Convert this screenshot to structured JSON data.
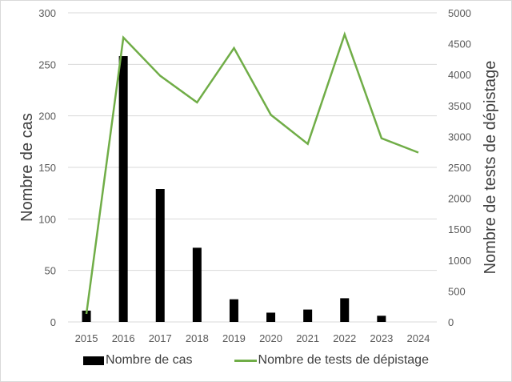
{
  "chart_data": {
    "type": "bar+line",
    "title": "",
    "categories": [
      "2015",
      "2016",
      "2017",
      "2018",
      "2019",
      "2020",
      "2021",
      "2022",
      "2023",
      "2024"
    ],
    "series": [
      {
        "name": "Nombre de cas",
        "type": "bar",
        "axis": "left",
        "color": "#000000",
        "values": [
          11,
          258,
          129,
          72,
          22,
          9,
          12,
          23,
          6,
          0
        ]
      },
      {
        "name": "Nombre de tests de dépistage",
        "type": "line",
        "axis": "right",
        "color": "#70AD47",
        "values": [
          130,
          4600,
          3980,
          3550,
          4430,
          3350,
          2880,
          4650,
          2970,
          2740
        ]
      }
    ],
    "xlabel": "",
    "ylabel": "Nombre de cas",
    "y2label": "Nombre de tests de dépistage",
    "ylim": [
      0,
      300
    ],
    "y2lim": [
      0,
      5000
    ],
    "yticks": [
      0,
      50,
      100,
      150,
      200,
      250,
      300
    ],
    "y2ticks": [
      0,
      500,
      1000,
      1500,
      2000,
      2500,
      3000,
      3500,
      4000,
      4500,
      5000
    ],
    "grid": true,
    "legend_position": "bottom"
  },
  "legend": {
    "bar_label": "Nombre de cas",
    "line_label": "Nombre de tests de dépistage"
  }
}
